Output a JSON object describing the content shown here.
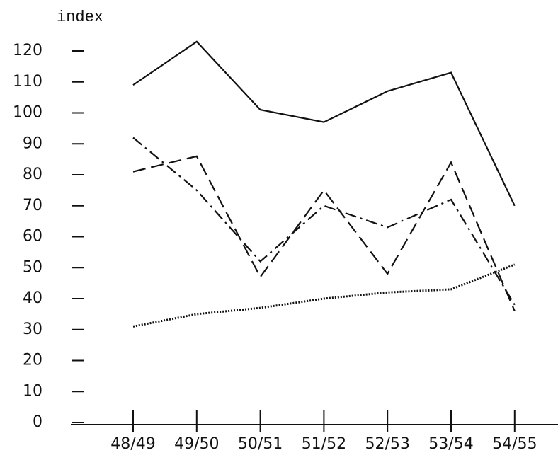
{
  "chart_data": {
    "type": "line",
    "y_label": "index",
    "categories": [
      "48/49",
      "49/50",
      "50/51",
      "51/52",
      "52/53",
      "53/54",
      "54/55"
    ],
    "series": [
      {
        "color": "#111111",
        "style": "solid",
        "values": [
          109,
          123,
          101,
          97,
          107,
          113,
          70
        ]
      },
      {
        "color": "#111111",
        "style": "dashed",
        "values": [
          81,
          86,
          47,
          75,
          48,
          84,
          36
        ]
      },
      {
        "color": "#111111",
        "style": "dashdot",
        "values": [
          92,
          75,
          52,
          70,
          63,
          72,
          38
        ]
      },
      {
        "color": "#111111",
        "style": "dotted",
        "values": [
          31,
          35,
          37,
          40,
          42,
          43,
          51
        ]
      }
    ],
    "ylim": [
      0,
      120
    ],
    "yticks": [
      0,
      10,
      20,
      30,
      40,
      50,
      60,
      70,
      80,
      90,
      100,
      110,
      120
    ],
    "grid": false
  }
}
